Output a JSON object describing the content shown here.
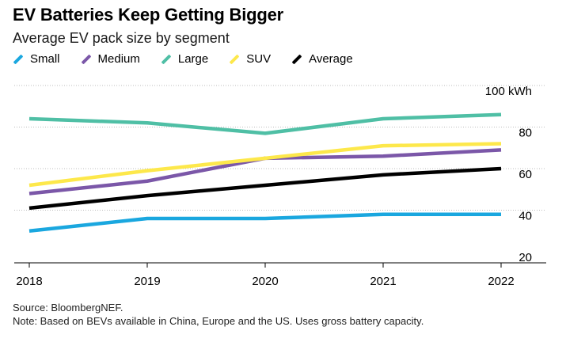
{
  "chart_data": {
    "type": "line",
    "title": "EV Batteries Keep Getting Bigger",
    "subtitle": "Average EV pack size by segment",
    "x": [
      "2018",
      "2019",
      "2020",
      "2021",
      "2022"
    ],
    "y_unit_label": "100 kWh",
    "yticks": [
      20,
      40,
      60,
      80,
      100
    ],
    "ylim": [
      20,
      100
    ],
    "grid": true,
    "legend_placement": "top-left",
    "series": [
      {
        "name": "Small",
        "color": "#1aa7df",
        "values": [
          30,
          36,
          36,
          38,
          38
        ]
      },
      {
        "name": "Medium",
        "color": "#7b57a8",
        "values": [
          48,
          54,
          65,
          66,
          69
        ]
      },
      {
        "name": "Large",
        "color": "#4fbfa5",
        "values": [
          84,
          82,
          77,
          84,
          86
        ]
      },
      {
        "name": "SUV",
        "color": "#fde84b",
        "values": [
          52,
          59,
          65,
          71,
          72
        ]
      },
      {
        "name": "Average",
        "color": "#000000",
        "values": [
          41,
          47,
          52,
          57,
          60
        ]
      }
    ]
  },
  "footer": {
    "source": "Source: BloombergNEF.",
    "note": "Note: Based on BEVs available in China, Europe and the US. Uses gross battery capacity."
  }
}
